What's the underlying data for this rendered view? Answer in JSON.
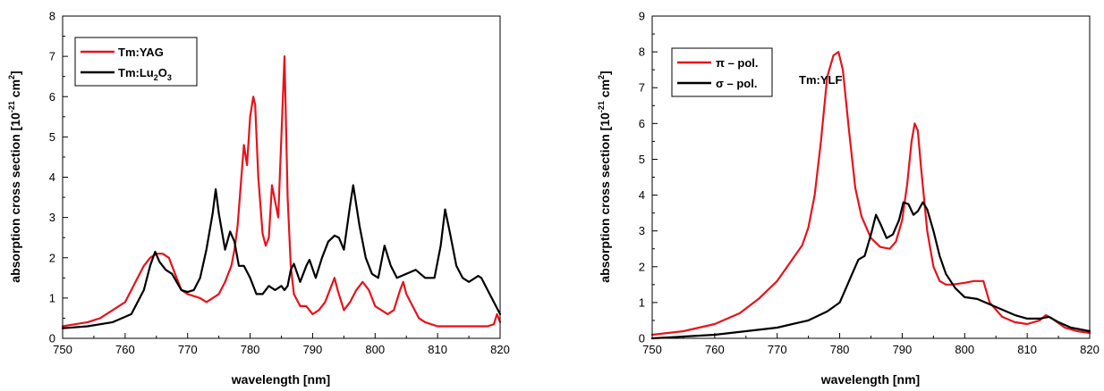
{
  "chart_data": [
    {
      "type": "line",
      "xlabel": "wavelength [nm]",
      "ylabel": "absorption cross section [10",
      "ylabel_sup1": "-21",
      "ylabel_mid": " cm",
      "ylabel_sup2": "2",
      "ylabel_end": "]",
      "xlim": [
        750,
        820
      ],
      "ylim": [
        0,
        8
      ],
      "xticks": [
        750,
        760,
        770,
        780,
        790,
        800,
        810,
        820
      ],
      "yticks": [
        0,
        1,
        2,
        3,
        4,
        5,
        6,
        7,
        8
      ],
      "grid": false,
      "legend_position": "top-left",
      "legend": [
        {
          "label": "Tm:YAG",
          "color": "#e8121b"
        },
        {
          "label_parts": [
            "Tm:Lu",
            "2",
            "O",
            "3"
          ],
          "color": "#000000"
        }
      ],
      "series": [
        {
          "name": "Tm:YAG",
          "color": "#e8121b",
          "x": [
            750,
            752,
            754,
            756,
            758,
            760,
            762,
            763,
            764,
            765,
            766,
            767,
            768,
            769,
            770,
            772,
            773,
            774,
            775,
            776,
            777,
            777.5,
            778,
            778.5,
            779,
            779.5,
            780,
            780.5,
            780.8,
            781.3,
            782,
            782.5,
            783,
            783.5,
            784,
            784.5,
            785,
            785.5,
            786,
            786.5,
            787,
            788,
            789,
            790,
            791,
            792,
            793,
            793.5,
            794,
            795,
            796,
            797,
            798,
            799,
            800,
            801,
            802,
            803,
            804,
            804.5,
            805,
            806,
            807,
            808,
            810,
            812,
            814,
            816,
            818,
            819,
            819.5,
            820
          ],
          "y": [
            0.3,
            0.35,
            0.4,
            0.5,
            0.7,
            0.9,
            1.5,
            1.8,
            2.0,
            2.1,
            2.1,
            2.0,
            1.6,
            1.2,
            1.1,
            1.0,
            0.9,
            1.0,
            1.1,
            1.4,
            1.8,
            2.2,
            2.8,
            3.8,
            4.8,
            4.3,
            5.5,
            6.0,
            5.8,
            4.0,
            2.6,
            2.3,
            2.5,
            3.8,
            3.4,
            3.0,
            5.0,
            7.0,
            3.5,
            1.8,
            1.1,
            0.8,
            0.8,
            0.6,
            0.7,
            0.9,
            1.3,
            1.5,
            1.2,
            0.7,
            0.9,
            1.2,
            1.4,
            1.2,
            0.8,
            0.7,
            0.6,
            0.7,
            1.2,
            1.4,
            1.1,
            0.8,
            0.5,
            0.4,
            0.3,
            0.3,
            0.3,
            0.3,
            0.3,
            0.35,
            0.6,
            0.4
          ]
        },
        {
          "name": "Tm:Lu2O3",
          "color": "#000000",
          "x": [
            750,
            754,
            758,
            761,
            763,
            764,
            764.8,
            765.5,
            766.5,
            767.5,
            769,
            770,
            771,
            772,
            773,
            774,
            774.5,
            775,
            776,
            776.8,
            777.5,
            778.2,
            779,
            780,
            781,
            782,
            783,
            784,
            785,
            785.5,
            786,
            786.5,
            787,
            788,
            789,
            789.5,
            790.5,
            791.5,
            792.5,
            793.5,
            794.2,
            795,
            796,
            796.5,
            797.5,
            798.5,
            799.5,
            800.5,
            801.5,
            802.5,
            803.5,
            805,
            806.5,
            808,
            809.5,
            810.5,
            811.2,
            812,
            813,
            814,
            815,
            816,
            816.5,
            817,
            818,
            819,
            820
          ],
          "y": [
            0.25,
            0.3,
            0.4,
            0.6,
            1.2,
            1.8,
            2.15,
            1.9,
            1.7,
            1.6,
            1.2,
            1.15,
            1.2,
            1.5,
            2.2,
            3.1,
            3.7,
            3.1,
            2.2,
            2.65,
            2.4,
            1.8,
            1.8,
            1.5,
            1.1,
            1.1,
            1.3,
            1.2,
            1.3,
            1.2,
            1.3,
            1.7,
            1.85,
            1.4,
            1.8,
            1.95,
            1.5,
            2.0,
            2.4,
            2.55,
            2.5,
            2.2,
            3.3,
            3.8,
            2.8,
            2.0,
            1.6,
            1.5,
            2.3,
            1.8,
            1.5,
            1.6,
            1.7,
            1.5,
            1.5,
            2.3,
            3.2,
            2.6,
            1.8,
            1.5,
            1.4,
            1.5,
            1.55,
            1.5,
            1.2,
            0.9,
            0.6
          ]
        }
      ]
    },
    {
      "type": "line",
      "xlabel": "wavelength [nm]",
      "ylabel": "absorption cross section [10",
      "ylabel_sup1": "-21",
      "ylabel_mid": " cm",
      "ylabel_sup2": "2",
      "ylabel_end": "]",
      "xlim": [
        750,
        820
      ],
      "ylim": [
        0,
        9
      ],
      "xticks": [
        750,
        760,
        770,
        780,
        790,
        800,
        810,
        820
      ],
      "yticks": [
        0,
        1,
        2,
        3,
        4,
        5,
        6,
        7,
        8,
        9
      ],
      "grid": false,
      "legend_position": "top-left",
      "legend": [
        {
          "label_parts": [
            "π",
            " – pol."
          ],
          "color": "#e8121b"
        },
        {
          "label_parts": [
            "σ",
            " – pol."
          ],
          "color": "#000000"
        }
      ],
      "annotation": "Tm:YLF",
      "series": [
        {
          "name": "π – pol.",
          "color": "#e8121b",
          "x": [
            750,
            755,
            760,
            764,
            767,
            770,
            772,
            774,
            775,
            776,
            777,
            778,
            779,
            779.8,
            780.5,
            781.5,
            782.5,
            783.5,
            785,
            786.5,
            788,
            789,
            790,
            790.8,
            791.5,
            792,
            792.5,
            793,
            794,
            795,
            796,
            797,
            798,
            800,
            801.5,
            802.5,
            803,
            804,
            806,
            808,
            810,
            812,
            813,
            814,
            816,
            818,
            820
          ],
          "y": [
            0.1,
            0.2,
            0.4,
            0.7,
            1.1,
            1.6,
            2.1,
            2.6,
            3.1,
            4.0,
            5.5,
            7.3,
            7.9,
            8.0,
            7.5,
            5.8,
            4.2,
            3.4,
            2.8,
            2.55,
            2.5,
            2.7,
            3.3,
            4.3,
            5.5,
            6.0,
            5.8,
            4.8,
            3.0,
            2.0,
            1.6,
            1.5,
            1.5,
            1.55,
            1.6,
            1.6,
            1.6,
            1.0,
            0.6,
            0.45,
            0.4,
            0.5,
            0.65,
            0.55,
            0.3,
            0.2,
            0.15
          ]
        },
        {
          "name": "σ – pol.",
          "color": "#000000",
          "x": [
            750,
            755,
            760,
            765,
            770,
            775,
            778,
            780,
            781,
            782,
            783,
            784,
            785,
            785.8,
            786.5,
            787.5,
            788.5,
            789.5,
            790.2,
            791,
            791.8,
            792.5,
            793.3,
            794,
            795,
            796,
            797,
            798.5,
            800,
            802,
            804,
            806,
            808,
            810,
            812,
            813.5,
            815,
            817,
            820
          ],
          "y": [
            0.0,
            0.05,
            0.1,
            0.2,
            0.3,
            0.5,
            0.75,
            1.0,
            1.4,
            1.8,
            2.2,
            2.3,
            2.9,
            3.45,
            3.2,
            2.8,
            2.9,
            3.3,
            3.8,
            3.75,
            3.45,
            3.55,
            3.8,
            3.6,
            3.0,
            2.3,
            1.8,
            1.4,
            1.15,
            1.1,
            0.95,
            0.8,
            0.65,
            0.55,
            0.55,
            0.6,
            0.45,
            0.3,
            0.2
          ]
        }
      ]
    }
  ]
}
